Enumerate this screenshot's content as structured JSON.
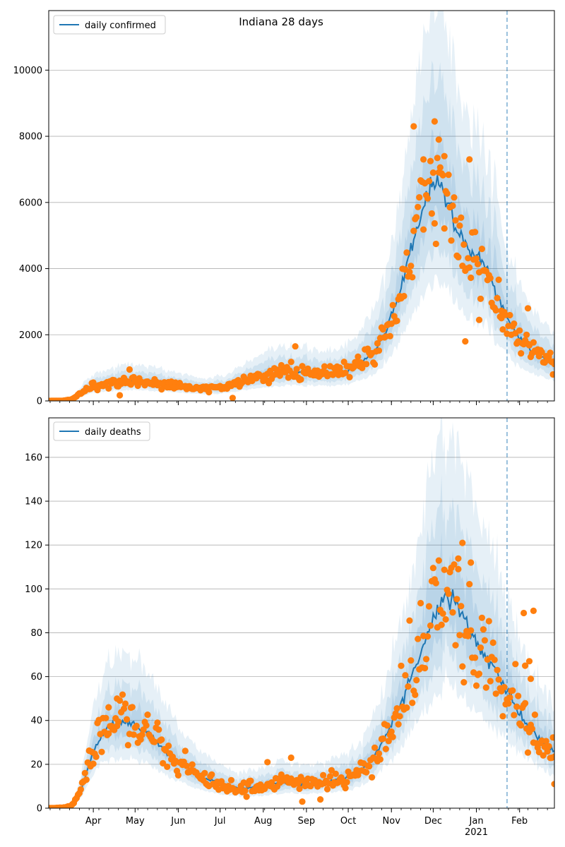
{
  "title": "Indiana 28 days",
  "colors": {
    "line": "#1f77b4",
    "dots": "#ff7f0e",
    "band": "#1f77b4",
    "grid": "#b0b0b0",
    "vline": "#1f77b4"
  },
  "chart_data": [
    {
      "type": "line",
      "name": "confirmed",
      "legend": "daily confirmed",
      "legend_loc": "upper-left",
      "grid": "horizontal",
      "xlim": [
        "2020-02-29",
        "2021-02-26"
      ],
      "ylim": [
        0,
        11800
      ],
      "yticks": [
        0,
        2000,
        4000,
        6000,
        8000,
        10000
      ],
      "vline_date": "2021-01-23",
      "curve": [
        [
          "2020-02-29",
          0
        ],
        [
          "2020-03-10",
          5
        ],
        [
          "2020-03-16",
          40
        ],
        [
          "2020-03-20",
          140
        ],
        [
          "2020-03-25",
          300
        ],
        [
          "2020-04-01",
          440
        ],
        [
          "2020-04-15",
          540
        ],
        [
          "2020-04-25",
          600
        ],
        [
          "2020-05-05",
          590
        ],
        [
          "2020-05-20",
          520
        ],
        [
          "2020-06-05",
          440
        ],
        [
          "2020-06-20",
          360
        ],
        [
          "2020-07-05",
          420
        ],
        [
          "2020-07-20",
          620
        ],
        [
          "2020-08-05",
          800
        ],
        [
          "2020-08-20",
          880
        ],
        [
          "2020-09-05",
          840
        ],
        [
          "2020-09-20",
          820
        ],
        [
          "2020-10-01",
          930
        ],
        [
          "2020-10-10",
          1150
        ],
        [
          "2020-10-20",
          1500
        ],
        [
          "2020-10-28",
          2100
        ],
        [
          "2020-11-05",
          3000
        ],
        [
          "2020-11-12",
          4100
        ],
        [
          "2020-11-20",
          5300
        ],
        [
          "2020-11-27",
          6200
        ],
        [
          "2020-12-03",
          6600
        ],
        [
          "2020-12-08",
          6400
        ],
        [
          "2020-12-14",
          5800
        ],
        [
          "2020-12-20",
          5000
        ],
        [
          "2020-12-27",
          4500
        ],
        [
          "2021-01-01",
          4400
        ],
        [
          "2021-01-07",
          4200
        ],
        [
          "2021-01-13",
          3600
        ],
        [
          "2021-01-20",
          2800
        ],
        [
          "2021-01-27",
          2200
        ],
        [
          "2021-02-03",
          1800
        ],
        [
          "2021-02-10",
          1500
        ],
        [
          "2021-02-18",
          1300
        ],
        [
          "2021-02-26",
          1100
        ]
      ],
      "bands": [
        {
          "level": "outer",
          "lower_factor": 0.55,
          "upper_factor": 1.85
        },
        {
          "level": "middle",
          "lower_factor": 0.7,
          "upper_factor": 1.5
        },
        {
          "level": "inner",
          "lower_factor": 0.85,
          "upper_factor": 1.2
        }
      ],
      "noise_factor": 0.14,
      "outliers": [
        [
          "2020-04-20",
          170
        ],
        [
          "2020-04-27",
          950
        ],
        [
          "2020-07-10",
          90
        ],
        [
          "2020-08-24",
          1650
        ],
        [
          "2020-11-17",
          8300
        ],
        [
          "2020-11-24",
          7300
        ],
        [
          "2020-12-02",
          8450
        ],
        [
          "2020-12-05",
          7900
        ],
        [
          "2020-12-09",
          7400
        ],
        [
          "2020-12-27",
          7300
        ],
        [
          "2020-12-24",
          1800
        ],
        [
          "2021-01-03",
          2450
        ],
        [
          "2021-01-19",
          2500
        ],
        [
          "2021-02-07",
          2800
        ],
        [
          "2021-02-25",
          800
        ]
      ]
    },
    {
      "type": "line",
      "name": "deaths",
      "legend": "daily deaths",
      "legend_loc": "upper-left",
      "grid": "horizontal",
      "xlim": [
        "2020-02-29",
        "2021-02-26"
      ],
      "ylim": [
        0,
        178
      ],
      "yticks": [
        0,
        20,
        40,
        60,
        80,
        100,
        120,
        140,
        160
      ],
      "vline_date": "2021-01-23",
      "curve": [
        [
          "2020-02-29",
          0
        ],
        [
          "2020-03-12",
          0.3
        ],
        [
          "2020-03-18",
          2
        ],
        [
          "2020-03-23",
          8
        ],
        [
          "2020-03-27",
          16
        ],
        [
          "2020-04-02",
          28
        ],
        [
          "2020-04-10",
          37
        ],
        [
          "2020-04-22",
          39
        ],
        [
          "2020-05-01",
          38
        ],
        [
          "2020-05-10",
          35
        ],
        [
          "2020-05-20",
          28
        ],
        [
          "2020-06-01",
          21
        ],
        [
          "2020-06-15",
          15
        ],
        [
          "2020-07-01",
          11
        ],
        [
          "2020-07-15",
          9
        ],
        [
          "2020-08-01",
          10
        ],
        [
          "2020-08-15",
          12
        ],
        [
          "2020-09-01",
          11
        ],
        [
          "2020-09-15",
          12
        ],
        [
          "2020-10-01",
          14
        ],
        [
          "2020-10-10",
          17
        ],
        [
          "2020-10-20",
          24
        ],
        [
          "2020-10-30",
          35
        ],
        [
          "2020-11-10",
          50
        ],
        [
          "2020-11-20",
          68
        ],
        [
          "2020-11-28",
          82
        ],
        [
          "2020-12-05",
          92
        ],
        [
          "2020-12-10",
          97
        ],
        [
          "2020-12-15",
          95
        ],
        [
          "2020-12-22",
          87
        ],
        [
          "2020-12-30",
          78
        ],
        [
          "2021-01-07",
          70
        ],
        [
          "2021-01-15",
          62
        ],
        [
          "2021-01-22",
          55
        ],
        [
          "2021-01-30",
          45
        ],
        [
          "2021-02-07",
          38
        ],
        [
          "2021-02-15",
          32
        ],
        [
          "2021-02-22",
          28
        ],
        [
          "2021-02-26",
          25
        ]
      ],
      "bands": [
        {
          "level": "outer",
          "lower_factor": 0.58,
          "upper_factor": 1.8
        },
        {
          "level": "middle",
          "lower_factor": 0.72,
          "upper_factor": 1.45
        },
        {
          "level": "inner",
          "lower_factor": 0.86,
          "upper_factor": 1.2
        }
      ],
      "noise_factor": 0.16,
      "outliers": [
        [
          "2020-04-18",
          50
        ],
        [
          "2020-04-12",
          46
        ],
        [
          "2020-08-04",
          21
        ],
        [
          "2020-08-21",
          23
        ],
        [
          "2020-08-29",
          3
        ],
        [
          "2020-09-11",
          4
        ],
        [
          "2020-12-22",
          121
        ],
        [
          "2020-12-28",
          112
        ],
        [
          "2020-12-19",
          109
        ],
        [
          "2021-02-04",
          89
        ],
        [
          "2021-02-11",
          90
        ],
        [
          "2021-02-08",
          67
        ],
        [
          "2021-02-05",
          65
        ],
        [
          "2021-02-09",
          59
        ],
        [
          "2021-02-26",
          11
        ]
      ]
    }
  ],
  "x_axis": {
    "month_labels": [
      [
        "2020-04-01",
        "Apr"
      ],
      [
        "2020-05-01",
        "May"
      ],
      [
        "2020-06-01",
        "Jun"
      ],
      [
        "2020-07-01",
        "Jul"
      ],
      [
        "2020-08-01",
        "Aug"
      ],
      [
        "2020-09-01",
        "Sep"
      ],
      [
        "2020-10-01",
        "Oct"
      ],
      [
        "2020-11-01",
        "Nov"
      ],
      [
        "2020-12-01",
        "Dec"
      ],
      [
        "2021-01-01",
        "Jan"
      ],
      [
        "2021-02-01",
        "Feb"
      ]
    ],
    "year_label": [
      "2021-01-01",
      "2021"
    ]
  }
}
